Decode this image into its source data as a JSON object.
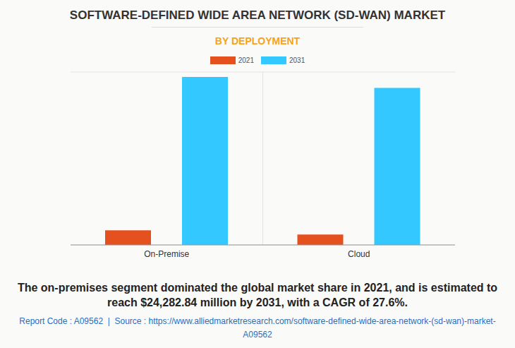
{
  "chart_data": {
    "type": "bar",
    "title": "SOFTWARE-DEFINED WIDE AREA NETWORK (SD-WAN) MARKET",
    "subtitle": "BY DEPLOYMENT",
    "categories": [
      "On-Premise",
      "Cloud"
    ],
    "series": [
      {
        "name": "2021",
        "color": "#e4501e",
        "values": [
          2122,
          1500
        ]
      },
      {
        "name": "2031",
        "color": "#33c8ff",
        "values": [
          24282.84,
          22700
        ]
      }
    ],
    "ylim": [
      0,
      25000
    ],
    "yticks": [
      0,
      5000,
      10000,
      15000,
      20000,
      25000
    ],
    "grid": true,
    "legend": "top",
    "tick_labels": "x",
    "caption": "The on-premises segment dominated the global market share in 2021, and is estimated to reach $24,282.84 million by 2031, with a CAGR of 27.6%.",
    "footer": "Report Code : A09562  |  Source : https://www.alliedmarketresearch.com/software-defined-wide-area-network-(sd-wan)-market-A09562"
  }
}
